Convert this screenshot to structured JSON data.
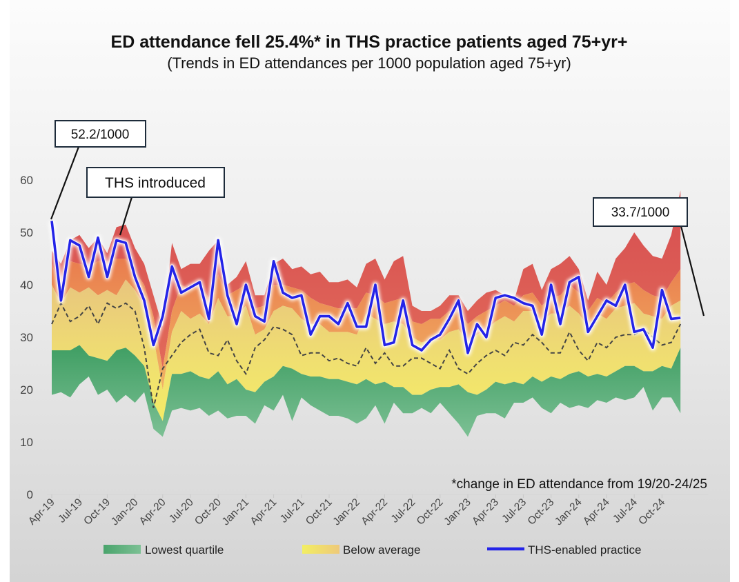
{
  "chart_data": {
    "type": "area",
    "title": "ED attendance fell 25.4%* in THS practice patients aged 75+yr+",
    "subtitle": "(Trends in ED attendances per 1000 population aged 75+yr)",
    "footnote": "*change in ED attendance from 19/20-24/25",
    "ylim": [
      0,
      60
    ],
    "yticks": [
      0,
      10,
      20,
      30,
      40,
      50,
      60
    ],
    "x_tick_labels": [
      "Apr-19",
      "Jul-19",
      "Oct-19",
      "Jan-20",
      "Apr-20",
      "Jul-20",
      "Oct-20",
      "Jan-21",
      "Apr-21",
      "Jul-21",
      "Oct-21",
      "Jan-22",
      "Apr-22",
      "Jul-22",
      "Oct-22",
      "Jan-23",
      "Apr-23",
      "Jul-23",
      "Oct-23",
      "Jan-24",
      "Apr-24",
      "Jul-24",
      "Oct-24"
    ],
    "x_start": "Apr-19",
    "n_months": 72,
    "grid": false,
    "legend_position": "bottom",
    "colors": {
      "ths_line": "#2424e8",
      "median_dash": "#444444",
      "red_band": "#d95552",
      "orange_band": "#ee9450",
      "yellow_band": "#eccf78",
      "green_band": "#4aa06a"
    },
    "legend": [
      {
        "label": "Lowest quartile",
        "swatch": "green"
      },
      {
        "label": "Below average",
        "swatch": "yellow"
      },
      {
        "label": "THS-enabled practice",
        "swatch": "line"
      }
    ],
    "annotations": [
      {
        "text": "52.2/1000"
      },
      {
        "text": "THS introduced"
      },
      {
        "text": "33.7/1000"
      }
    ],
    "series": [
      {
        "name": "THS-enabled practice",
        "values": [
          52.2,
          37,
          48.5,
          47.5,
          41.5,
          49,
          41.5,
          48.5,
          48,
          41.5,
          37,
          28.5,
          34,
          43.5,
          38.5,
          39.5,
          40.5,
          33.5,
          48.5,
          38,
          32.5,
          40,
          34,
          33,
          44.5,
          38.5,
          37.5,
          38,
          30.5,
          34,
          34,
          32.5,
          36.5,
          32,
          32,
          40,
          28.5,
          29,
          37,
          28.5,
          27.5,
          29.5,
          30.5,
          33.5,
          37,
          27,
          32.5,
          30,
          37.5,
          38,
          37.5,
          36.5,
          36,
          30.5,
          40,
          32.5,
          40.5,
          41.5,
          31,
          34,
          37,
          36,
          40,
          31,
          31.5,
          28,
          39,
          33.5,
          33.7,
          null,
          null,
          null
        ]
      },
      {
        "values": [
          32.5,
          36.5,
          33,
          34,
          36,
          32.5,
          36.5,
          35.5,
          36.5,
          35,
          28,
          16.5,
          24,
          26.5,
          29,
          30.5,
          31.5,
          27,
          26.5,
          29.5,
          25.5,
          23,
          28,
          29.5,
          32,
          31.5,
          30.5,
          26.5,
          27,
          27,
          25.5,
          26,
          25,
          24.5,
          28,
          25,
          27,
          24.5,
          24.5,
          26,
          26,
          25,
          24,
          27.5,
          24,
          23,
          25,
          26.5,
          27.5,
          26.5,
          29,
          28.5,
          30.5,
          29,
          27,
          27,
          31,
          27.5,
          25.5,
          29,
          28,
          30,
          30.5,
          30.5,
          31.5,
          30,
          28.5,
          29,
          32.5,
          null,
          null,
          null
        ]
      },
      {
        "values": [
          46.5,
          44,
          48.5,
          49.5,
          47,
          49,
          46,
          51,
          51.5,
          47,
          44,
          38,
          32,
          48,
          43,
          44,
          44,
          46.5,
          48.5,
          40,
          41.5,
          44.5,
          38,
          38,
          44,
          45,
          43,
          43.5,
          42,
          42.5,
          40.5,
          40.5,
          41,
          39.5,
          44,
          45,
          41,
          44.5,
          45.5,
          36,
          35,
          35,
          36,
          38,
          38,
          35,
          37,
          38.5,
          39,
          38,
          37,
          43,
          44,
          39,
          43,
          44,
          45.5,
          43,
          37,
          42.5,
          40,
          45,
          47,
          50,
          47.5,
          45.5,
          45,
          49.5,
          58,
          null,
          null,
          null
        ]
      },
      {
        "values": [
          44,
          39.5,
          44.5,
          44,
          43.5,
          44.5,
          44.5,
          45,
          45,
          42.5,
          40,
          34,
          24,
          35,
          40,
          39,
          40,
          37.5,
          42,
          38,
          39,
          40,
          35.5,
          36,
          40,
          40,
          39.5,
          39,
          37.5,
          36.5,
          36,
          35.5,
          35.5,
          35.5,
          38.5,
          38,
          36.5,
          37,
          37.5,
          33,
          32.5,
          33.5,
          33.5,
          35,
          35,
          32.5,
          34,
          35,
          36,
          37,
          36,
          38,
          38.5,
          36,
          37.5,
          38,
          40,
          38.5,
          35,
          37.5,
          36.5,
          38.5,
          40,
          40.5,
          39,
          38,
          37.5,
          40.5,
          43,
          null,
          null,
          null
        ]
      },
      {
        "values": [
          40,
          36.5,
          39.5,
          38.5,
          39.5,
          38,
          39,
          38,
          41,
          39,
          36,
          30,
          20,
          31,
          35,
          33.5,
          34.5,
          32.5,
          37.5,
          34,
          34,
          36,
          30.5,
          31.5,
          35,
          36,
          35.5,
          33.5,
          32.5,
          32.5,
          31,
          31,
          31,
          30.5,
          34.5,
          33.5,
          32.5,
          33,
          32.5,
          30,
          29,
          29.5,
          29.5,
          31,
          31.5,
          29,
          30.5,
          31.5,
          33,
          34,
          33,
          35,
          35,
          33,
          34.5,
          34.5,
          36,
          34.5,
          32,
          34.5,
          33.5,
          35.5,
          36,
          36.5,
          34.5,
          34,
          33.5,
          36,
          37,
          null,
          null,
          null
        ]
      },
      {
        "values": [
          27.5,
          27.5,
          27.5,
          28.5,
          26.5,
          26,
          25.5,
          27.5,
          28,
          26.5,
          24.5,
          17.5,
          14,
          23,
          23,
          23.5,
          22.5,
          22,
          23.5,
          21,
          22,
          20,
          19.5,
          21.5,
          22.5,
          24.5,
          24,
          23,
          22.5,
          22.5,
          22,
          22,
          21.5,
          21,
          22,
          21,
          21.5,
          20.5,
          20.5,
          19,
          19,
          20,
          20.5,
          20.5,
          21,
          19.5,
          19,
          20,
          21.5,
          21,
          21.5,
          21,
          22.5,
          21.5,
          22.5,
          22,
          23,
          23.5,
          22.5,
          23,
          22.5,
          23.5,
          24.5,
          24.5,
          23.5,
          23.5,
          24.5,
          24,
          28,
          null,
          null,
          null
        ]
      },
      {
        "values": [
          19,
          19.5,
          18.5,
          21,
          22.5,
          19,
          20,
          17.5,
          19,
          17.5,
          19.5,
          12.5,
          11,
          16,
          16.5,
          16,
          16.5,
          15,
          16,
          14.5,
          15,
          15,
          13.5,
          17,
          16,
          19,
          14,
          18.5,
          17,
          16,
          15,
          15,
          14.5,
          13.5,
          14.5,
          17,
          13.5,
          17.5,
          15.5,
          15.5,
          16.5,
          15.5,
          17.5,
          15.5,
          13.5,
          11,
          15,
          15.5,
          15.5,
          14.5,
          17.5,
          17.5,
          18.5,
          16.5,
          15.5,
          17.5,
          16.5,
          17,
          16.5,
          18,
          17.5,
          18.5,
          18,
          18.5,
          20.5,
          16,
          18.5,
          18.5,
          15.5,
          null,
          null,
          null
        ]
      }
    ]
  }
}
